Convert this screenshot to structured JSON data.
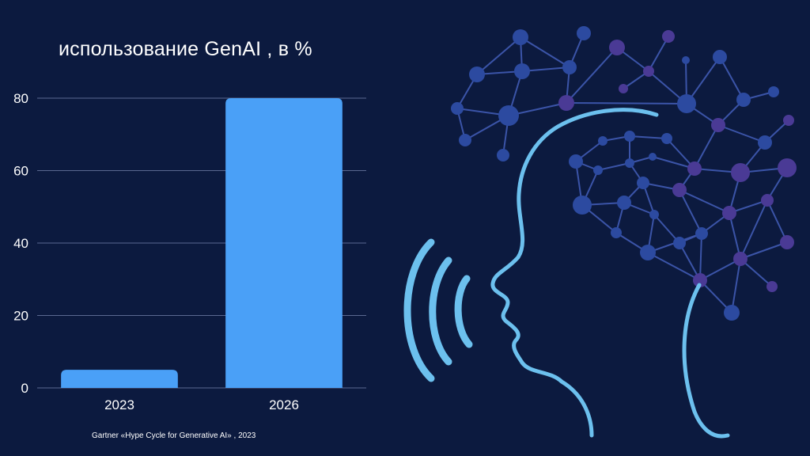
{
  "chart_data": {
    "type": "bar",
    "title": "использование GenAI , в %",
    "categories": [
      "2023",
      "2026"
    ],
    "values": [
      5,
      80
    ],
    "ylim": [
      0,
      80
    ],
    "yticks": [
      0,
      20,
      40,
      60,
      80
    ],
    "xlabel": "",
    "ylabel": "",
    "grid": true,
    "bar_color": "#4aa0f7",
    "grid_color": "#5a6890"
  },
  "source": "Gartner «Hype Cycle for Generative AI» , 2023",
  "colors": {
    "background": "#0c1a3f",
    "accent_line": "#6cc0ee",
    "node_blue": "#2c4aa0",
    "node_purple": "#4a3a95"
  },
  "illustration": {
    "icon": "ai-head-speaking-icon"
  }
}
